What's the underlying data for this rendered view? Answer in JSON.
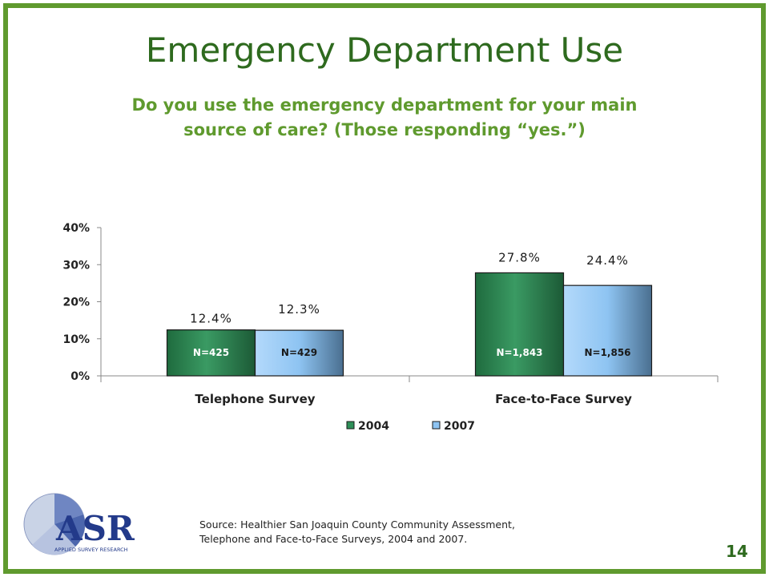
{
  "slide": {
    "title": "Emergency Department Use",
    "subtitle_line1": "Do you use the emergency department for your main",
    "subtitle_line2": "source of care? (Those responding “yes.”)",
    "source_line1": "Source: Healthier San Joaquin County Community Assessment,",
    "source_line2": "Telephone and Face-to-Face Surveys, 2004 and 2007.",
    "page_number": "14",
    "logo_text": "ASR",
    "logo_subtext": "APPLIED SURVEY RESEARCH"
  },
  "colors": {
    "frame": "#5f9a2e",
    "title": "#2e6a1e",
    "subtitle": "#5f9a2e",
    "series_2004": "#2e8f58",
    "series_2007": "#8ec4f2"
  },
  "chart_data": {
    "type": "bar",
    "categories": [
      "Telephone Survey",
      "Face-to-Face Survey"
    ],
    "series": [
      {
        "name": "2004",
        "values": [
          12.4,
          27.8
        ],
        "value_labels": [
          "12.4%",
          "27.8%"
        ],
        "n_labels": [
          "N=425",
          "N=1,843"
        ]
      },
      {
        "name": "2007",
        "values": [
          12.3,
          24.4
        ],
        "value_labels": [
          "12.3%",
          "24.4%"
        ],
        "n_labels": [
          "N=429",
          "N=1,856"
        ]
      }
    ],
    "y_ticks": [
      0,
      10,
      20,
      30,
      40
    ],
    "y_tick_labels": [
      "0%",
      "10%",
      "20%",
      "30%",
      "40%"
    ],
    "ylim": [
      0,
      40
    ],
    "grid": false,
    "legend_position": "bottom"
  }
}
